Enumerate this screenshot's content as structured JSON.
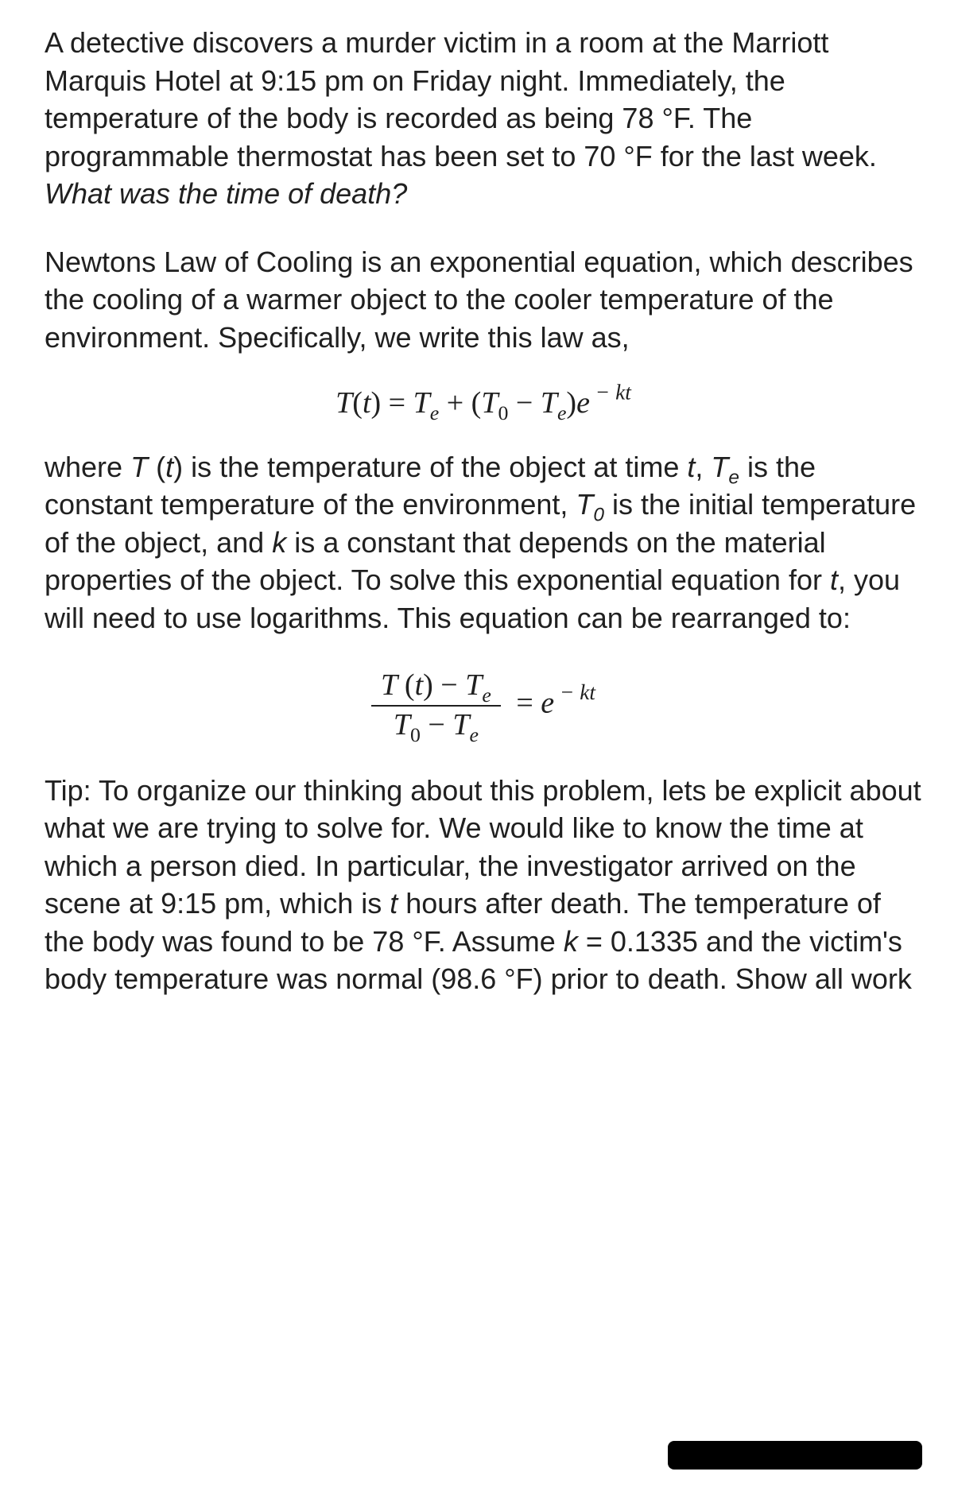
{
  "p1_a": "A detective discovers a murder victim in a room at the Marriott Marquis Hotel at 9:15 pm on Friday night. Immediately, the temperature of the body is recorded as being 78 °F. The programmable thermostat has been set to 70 °F for the last week. ",
  "p1_b": "What was the time of death?",
  "p2": "Newtons Law of Cooling is an exponential equation, which describes the cooling of a warmer object to the cooler temperature of the environment. Specifically, we write this law as,",
  "eq1": {
    "T": "T",
    "t": "t",
    "eq": " = ",
    "Te_T": "T",
    "Te_sub": "e",
    "plus": " + (",
    "T0_T": "T",
    "T0_sub": "0",
    "minus": " − ",
    "Te2_T": "T",
    "Te2_sub": "e",
    "close": ")",
    "e": "e",
    "exp": " − kt"
  },
  "p3_a": "where ",
  "p3_b": "T ",
  "p3_c": "(",
  "p3_d": "t",
  "p3_e": ") is the temperature of the object at time ",
  "p3_f": "t",
  "p3_g": ", ",
  "p3_h": "T",
  "p3_i": "e",
  "p3_j": " is the constant temperature of the environment, ",
  "p3_k": "T",
  "p3_l": "0",
  "p3_m": " is the initial temperature of the object, and ",
  "p3_n": "k",
  "p3_o": " is a constant that depends on the material properties of the object. To solve this exponential equation for ",
  "p3_p": "t",
  "p3_q": ", you will need to use logarithms. This equation can be rearranged to:",
  "eq2": {
    "num_T": "T ",
    "num_open": "(",
    "num_t": "t",
    "num_close": ") ",
    "num_minus": " − ",
    "num_Te_T": "T",
    "num_Te_sub": "e",
    "den_T0_T": "T",
    "den_T0_sub": "0",
    "den_minus": " − ",
    "den_Te_T": "T",
    "den_Te_sub": "e",
    "eq": " = ",
    "e": "e",
    "exp": " − kt"
  },
  "p4_a": "Tip: To organize our thinking about this problem, lets be explicit about what we are trying to solve for. We would like to know the time at which a person died. In particular, the investigator arrived on the scene at 9:15 pm, which is ",
  "p4_b": "t",
  "p4_c": " hours after death. The temperature of the body was found to be 78 °F. Assume ",
  "p4_d": "k",
  "p4_e": " = 0.1335 and the victim's body temperature was normal (98.6 °F) prior to death. Show all work"
}
